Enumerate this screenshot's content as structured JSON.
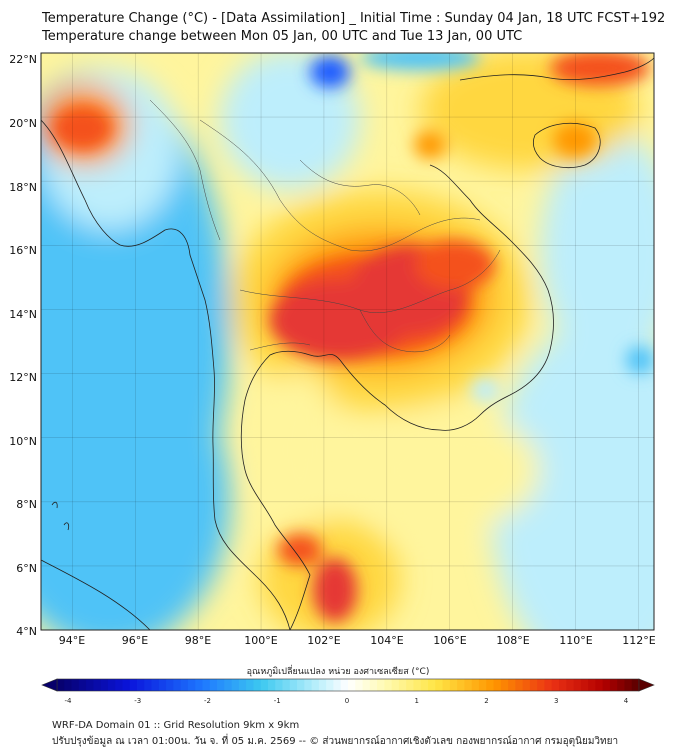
{
  "header": {
    "title": "Temperature Change (°C) - [Data Assimilation] _ Initial Time : Sunday 04 Jan, 18 UTC FCST+192",
    "subtitle": "Temperature change between Mon 05 Jan, 00 UTC and Tue 13 Jan, 00 UTC"
  },
  "map": {
    "lon_range": [
      93,
      112.5
    ],
    "lat_range": [
      4,
      22
    ],
    "lat_labels": [
      "22°N",
      "20°N",
      "18°N",
      "16°N",
      "14°N",
      "12°N",
      "10°N",
      "8°N",
      "6°N",
      "4°N"
    ],
    "lon_labels": [
      "94°E",
      "96°E",
      "98°E",
      "100°E",
      "102°E",
      "104°E",
      "106°E",
      "108°E",
      "110°E",
      "112°E"
    ],
    "colors": {
      "strong_cool": "#1a5cff",
      "cool": "#4fc3f7",
      "light_cool": "#bdeefc",
      "neutral": "#ffffff",
      "light_warm": "#fff59d",
      "warm": "#ffd740",
      "orange": "#ff9800",
      "hot": "#f4511e",
      "very_hot": "#e53935"
    }
  },
  "colorbar": {
    "title": "อุณหภูมิเปลี่ยนแปลง หน่วย องศาเซลเซียส (°C)",
    "range": [
      -4,
      4
    ],
    "tick_labels": [
      "-4",
      "-3",
      "-2",
      "-1",
      "0",
      "1",
      "2",
      "3",
      "4"
    ],
    "tick_values": [
      -4,
      -3,
      -2,
      -1,
      0,
      1,
      2,
      3,
      4
    ]
  },
  "footer": {
    "line1": "WRF-DA Domain 01 :: Grid Resolution 9km x 9km",
    "line2": "ปรับปรุงข้อมูล ณ เวลา 01:00น. วัน จ. ที่ 05 ม.ค. 2569 -- © ส่วนพยากรณ์อากาศเชิงตัวเลข กองพยากรณ์อากาศ กรมอุตุนิยมวิทยา"
  }
}
